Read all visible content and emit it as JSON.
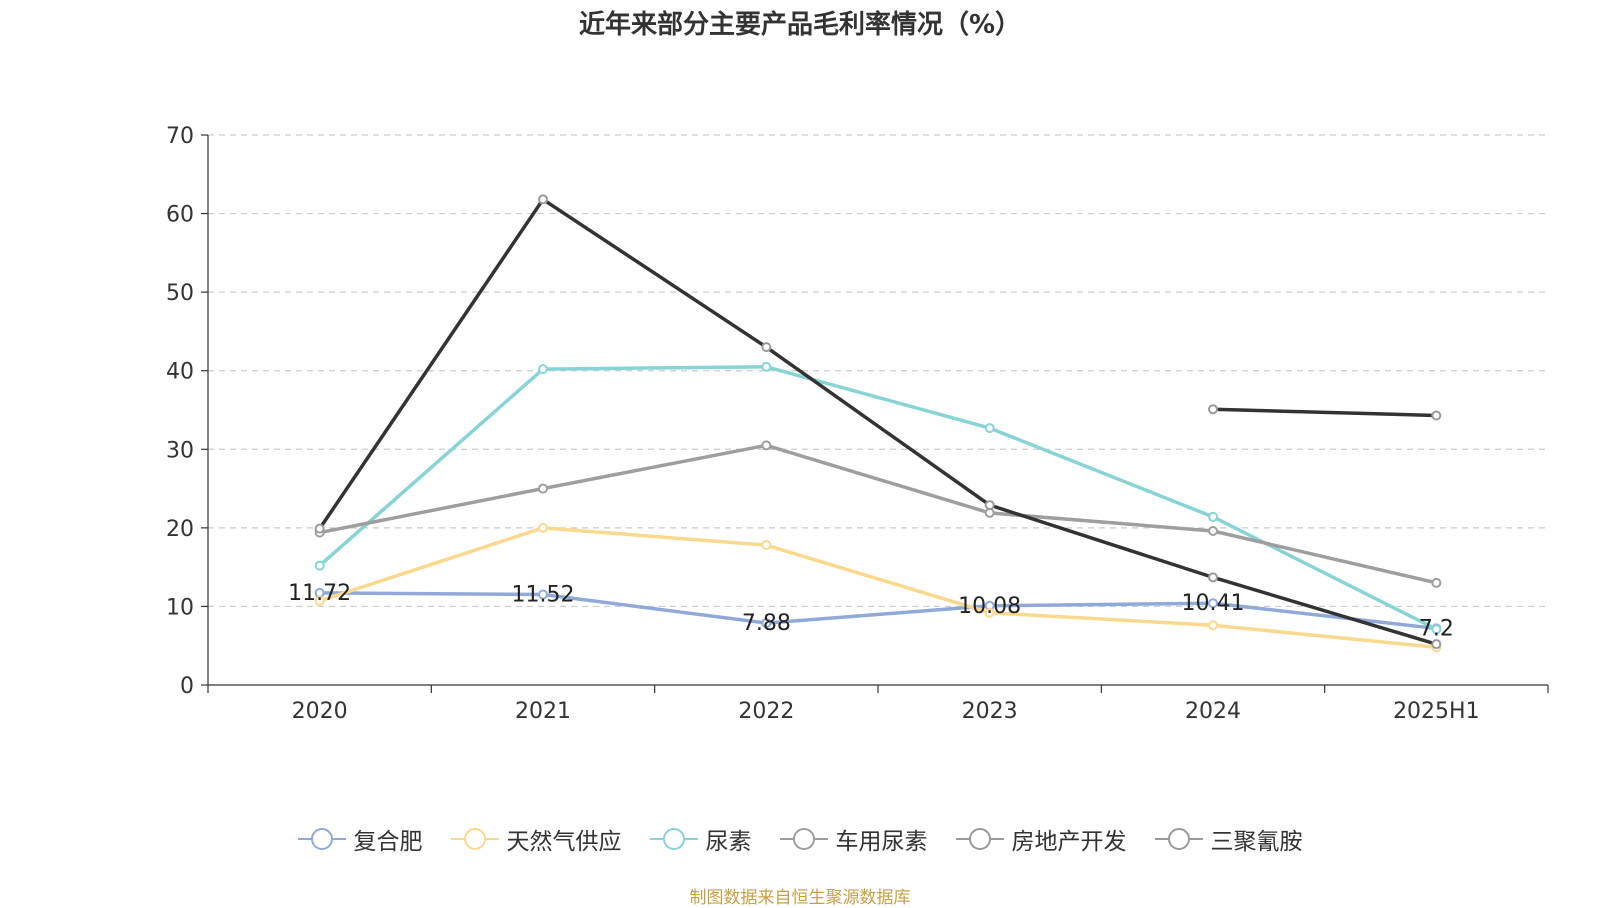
{
  "chart_data": {
    "type": "line",
    "title": "近年来部分主要产品毛利率情况（%）",
    "categories": [
      "2020",
      "2021",
      "2022",
      "2023",
      "2024",
      "2025H1"
    ],
    "ylim": [
      0,
      70
    ],
    "yticks": [
      0,
      10,
      20,
      30,
      40,
      50,
      60,
      70
    ],
    "grid": true,
    "legend_position": "bottom",
    "series": [
      {
        "name": "复合肥",
        "color": "#8fa9d8",
        "values": [
          11.72,
          11.52,
          7.88,
          10.08,
          10.41,
          7.2
        ],
        "labels": [
          "11.72",
          "11.52",
          "7.88",
          "10.08",
          "10.41",
          "7.2"
        ]
      },
      {
        "name": "天然气供应",
        "color": "#fad88c",
        "values": [
          10.7,
          20.0,
          17.8,
          9.2,
          7.6,
          4.8
        ]
      },
      {
        "name": "尿素",
        "color": "#86d4d6",
        "values": [
          15.2,
          40.2,
          40.5,
          32.7,
          21.4,
          7.1
        ]
      },
      {
        "name": "车用尿素",
        "color": "#9e9e9e",
        "values": [
          19.4,
          25.0,
          30.5,
          21.9,
          19.6,
          13.0
        ]
      },
      {
        "name": "房地产开发",
        "color": "#333333",
        "values": [
          19.9,
          61.8,
          43.0,
          22.9,
          13.7,
          5.2
        ]
      },
      {
        "name": "三聚氰胺",
        "color": "#333333",
        "values": [
          null,
          null,
          null,
          null,
          35.1,
          34.3
        ]
      }
    ]
  },
  "source_note": "制图数据来自恒生聚源数据库"
}
